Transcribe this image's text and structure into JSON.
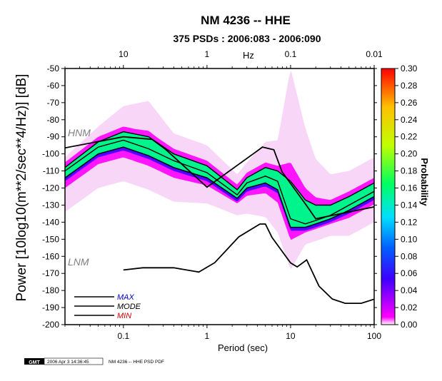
{
  "chart_data": {
    "type": "heatmap",
    "title": "NM 4236 -- HHE",
    "subtitle": "375 PSDs : 2006:083 - 2006:090",
    "xlabel": "Period (sec)",
    "ylabel": "Power [10log10(m**2/sec**4/Hz)] [dB]",
    "top_axis_label": "Hz",
    "x_scale": "log",
    "xlim": [
      0.02,
      100
    ],
    "ylim": [
      -200,
      -50
    ],
    "x_ticks": [
      0.1,
      1,
      10,
      100
    ],
    "x_tick_labels": [
      "0.1",
      "1",
      "10",
      "100"
    ],
    "top_ticks": [
      10,
      1,
      0.1,
      0.01
    ],
    "top_tick_labels": [
      "10",
      "1",
      "0.1",
      "0.01"
    ],
    "y_ticks": [
      -50,
      -60,
      -70,
      -80,
      -90,
      -100,
      -110,
      -120,
      -130,
      -140,
      -150,
      -160,
      -170,
      -180,
      -190,
      -200
    ],
    "y_tick_labels": [
      "-50",
      "-60",
      "-70",
      "-80",
      "-90",
      "-100",
      "-110",
      "-120",
      "-130",
      "-140",
      "-150",
      "-160",
      "-170",
      "-180",
      "-190",
      "-200"
    ],
    "colorbar": {
      "label": "Probability",
      "range": [
        0,
        0.3
      ],
      "ticks": [
        0.0,
        0.02,
        0.04,
        0.06,
        0.08,
        0.1,
        0.12,
        0.14,
        0.16,
        0.18,
        0.2,
        0.22,
        0.24,
        0.26,
        0.28,
        0.3
      ],
      "tick_labels": [
        "0.00",
        "0.02",
        "0.04",
        "0.06",
        "0.08",
        "0.10",
        "0.12",
        "0.14",
        "0.16",
        "0.18",
        "0.20",
        "0.22",
        "0.24",
        "0.26",
        "0.28",
        "0.30"
      ],
      "stops": [
        "#ffffff",
        "#ff00ff",
        "#3c00ff",
        "#0060ff",
        "#00e0ff",
        "#00ff60",
        "#c0ff00",
        "#ffc000",
        "#ff0000"
      ]
    },
    "reference_models": {
      "HNM": {
        "label": "HNM",
        "periods": [
          0.02,
          0.1,
          0.22,
          0.32,
          1,
          3.8,
          4.6,
          6.3,
          7.9,
          15.4,
          20,
          100
        ],
        "power": [
          -96.5,
          -90,
          -91.5,
          -97.4,
          -119.5,
          -99,
          -96,
          -97.6,
          -110.5,
          -130,
          -138,
          -131
        ]
      },
      "LNM": {
        "label": "LNM",
        "periods": [
          0.1,
          0.17,
          0.4,
          0.8,
          1.24,
          2.4,
          4.3,
          5,
          6,
          10,
          12,
          15.6,
          21.9,
          31.6,
          45,
          70,
          101
        ],
        "power": [
          -168,
          -166.7,
          -166.7,
          -169.2,
          -163.7,
          -148.6,
          -141.1,
          -141.1,
          -149,
          -163.8,
          -166.2,
          -162.1,
          -177.5,
          -185,
          -187.5,
          -187.5,
          -185
        ]
      }
    },
    "series": [
      {
        "name": "MAX",
        "label_color": "#0000cc",
        "periods": [
          0.02,
          0.05,
          0.1,
          0.2,
          0.4,
          1,
          2.3,
          3,
          5,
          7,
          10,
          15,
          20,
          30,
          50,
          100
        ],
        "power": [
          -108,
          -93,
          -87,
          -90,
          -100,
          -107,
          -121,
          -114,
          -108,
          -110,
          -116,
          -127,
          -130,
          -130,
          -125,
          -117
        ]
      },
      {
        "name": "MODE",
        "label_color": "#000000",
        "periods": [
          0.02,
          0.05,
          0.1,
          0.2,
          0.4,
          1,
          2.3,
          3,
          5,
          7,
          10,
          15,
          20,
          30,
          50,
          100
        ],
        "power": [
          -110,
          -96,
          -92,
          -97,
          -104,
          -111,
          -124,
          -117,
          -113,
          -116,
          -138,
          -141,
          -139,
          -136,
          -130,
          -122
        ]
      },
      {
        "name": "MIN",
        "label_color": "#cc0000",
        "periods": [
          0.02,
          0.05,
          0.1,
          0.2,
          0.4,
          1,
          2.3,
          3,
          5,
          7,
          10,
          15,
          20,
          30,
          50,
          100
        ],
        "power": [
          -114,
          -100,
          -96,
          -101,
          -108,
          -114,
          -126,
          -120,
          -117,
          -121,
          -143,
          -143,
          -141,
          -138,
          -133,
          -125
        ]
      }
    ]
  },
  "footer": {
    "logo_text": "GMT",
    "timestamp": "2006 Apr  3 14:36:45",
    "caption": "NM 4236 -- HHE PSD PDF"
  }
}
